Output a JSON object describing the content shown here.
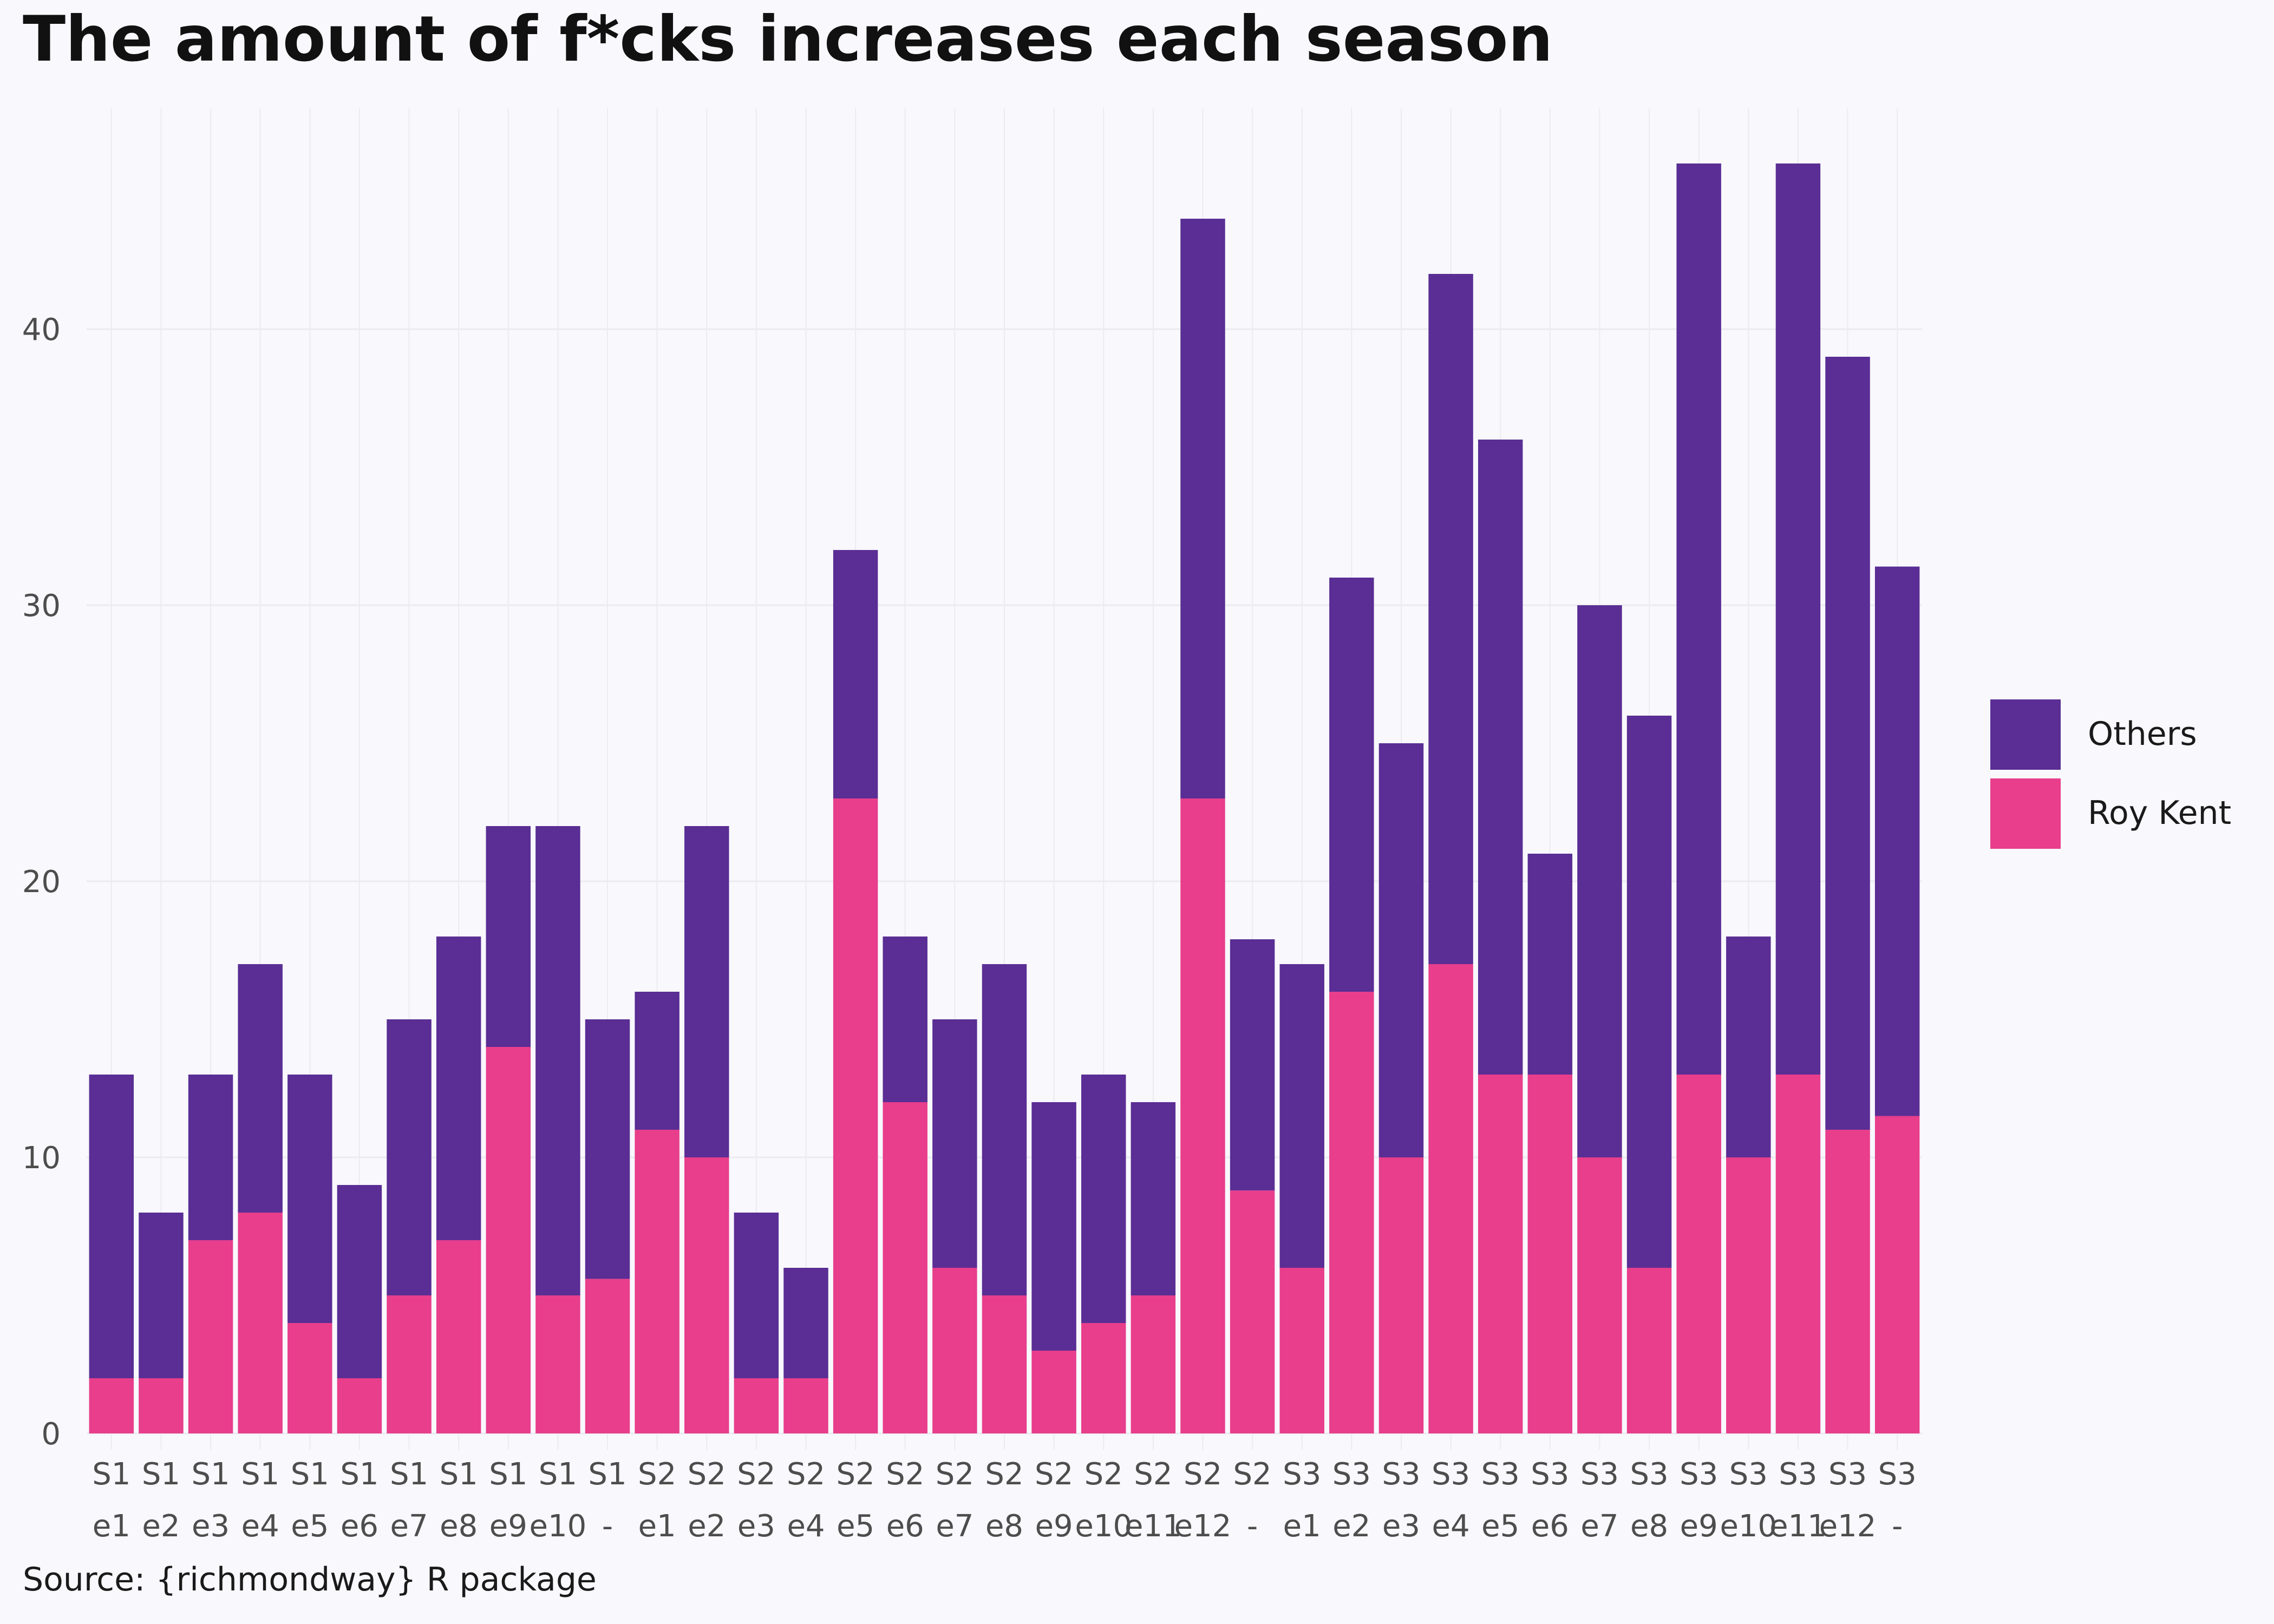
{
  "chart_data": {
    "type": "bar",
    "stacked": true,
    "title": "The amount of f*cks increases each season",
    "caption": "Source: {richmondway} R package",
    "xlabel": "",
    "ylabel": "",
    "ylim": [
      0,
      48
    ],
    "yticks": [
      0,
      10,
      20,
      30,
      40
    ],
    "grid": true,
    "legend_position": "right",
    "categories": [
      {
        "season": "S1",
        "episode": "e1"
      },
      {
        "season": "S1",
        "episode": "e2"
      },
      {
        "season": "S1",
        "episode": "e3"
      },
      {
        "season": "S1",
        "episode": "e4"
      },
      {
        "season": "S1",
        "episode": "e5"
      },
      {
        "season": "S1",
        "episode": "e6"
      },
      {
        "season": "S1",
        "episode": "e7"
      },
      {
        "season": "S1",
        "episode": "e8"
      },
      {
        "season": "S1",
        "episode": "e9"
      },
      {
        "season": "S1",
        "episode": "e10"
      },
      {
        "season": "S1",
        "episode": "-"
      },
      {
        "season": "S2",
        "episode": "e1"
      },
      {
        "season": "S2",
        "episode": "e2"
      },
      {
        "season": "S2",
        "episode": "e3"
      },
      {
        "season": "S2",
        "episode": "e4"
      },
      {
        "season": "S2",
        "episode": "e5"
      },
      {
        "season": "S2",
        "episode": "e6"
      },
      {
        "season": "S2",
        "episode": "e7"
      },
      {
        "season": "S2",
        "episode": "e8"
      },
      {
        "season": "S2",
        "episode": "e9"
      },
      {
        "season": "S2",
        "episode": "e10"
      },
      {
        "season": "S2",
        "episode": "e11"
      },
      {
        "season": "S2",
        "episode": "e12"
      },
      {
        "season": "S2",
        "episode": "-"
      },
      {
        "season": "S3",
        "episode": "e1"
      },
      {
        "season": "S3",
        "episode": "e2"
      },
      {
        "season": "S3",
        "episode": "e3"
      },
      {
        "season": "S3",
        "episode": "e4"
      },
      {
        "season": "S3",
        "episode": "e5"
      },
      {
        "season": "S3",
        "episode": "e6"
      },
      {
        "season": "S3",
        "episode": "e7"
      },
      {
        "season": "S3",
        "episode": "e8"
      },
      {
        "season": "S3",
        "episode": "e9"
      },
      {
        "season": "S3",
        "episode": "e10"
      },
      {
        "season": "S3",
        "episode": "e11"
      },
      {
        "season": "S3",
        "episode": "e12"
      },
      {
        "season": "S3",
        "episode": "-"
      }
    ],
    "series": [
      {
        "name": "Roy Kent",
        "color": "#e83e8c",
        "values": [
          2,
          2,
          7,
          8,
          4,
          2,
          5,
          7,
          14,
          5,
          5.6,
          11,
          10,
          2,
          2,
          23,
          12,
          6,
          5,
          3,
          4,
          5,
          23,
          8.8,
          6,
          16,
          10,
          17,
          13,
          13,
          10,
          6,
          13,
          10,
          13,
          11,
          11.5
        ]
      },
      {
        "name": "Others",
        "color": "#5a2e94",
        "values": [
          11,
          6,
          6,
          9,
          9,
          7,
          10,
          11,
          8,
          17,
          9.4,
          5,
          12,
          6,
          4,
          9,
          6,
          9,
          12,
          9,
          9,
          7,
          21,
          9.1,
          11,
          15,
          15,
          25,
          23,
          8,
          20,
          20,
          33,
          8,
          33,
          28,
          19.9
        ]
      }
    ],
    "legend_order": [
      "Others",
      "Roy Kent"
    ]
  }
}
